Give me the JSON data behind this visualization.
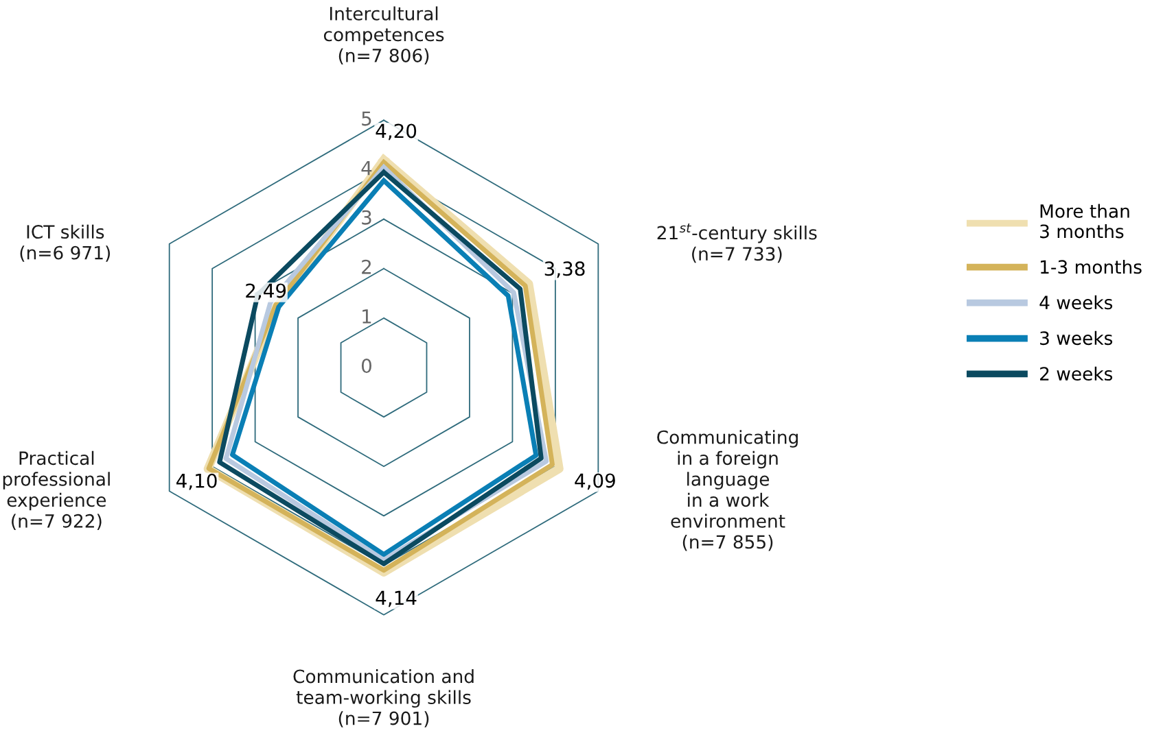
{
  "chart_data": {
    "type": "radar",
    "categories": [
      "Intercultural\ncompetences\n(n=7 806)",
      "21$^{st}$-century skills\n(n=7 733)",
      "Communicating\nin a foreign\nlanguage\nin a work\nenvironment\n(n=7 855)",
      "Communication and\nteam-working skills\n(n=7 901)",
      "Practical\nprofessional\nexperience\n(n=7 922)",
      "ICT skills\n(n=6 971)"
    ],
    "series": [
      {
        "name": "More than\n3 months",
        "color": "#efdfb0",
        "values": [
          4.2,
          3.38,
          4.09,
          4.14,
          4.1,
          2.49
        ],
        "value_labels": [
          "4,20",
          "3,38",
          "4,09",
          "4,14",
          "4,10",
          "2,49"
        ]
      },
      {
        "name": "1-3 months",
        "color": "#d4b35a",
        "values": [
          4.15,
          3.3,
          3.93,
          4.1,
          4.08,
          2.52
        ]
      },
      {
        "name": "4 weeks",
        "color": "#b8c9e0",
        "values": [
          4.05,
          3.03,
          3.79,
          3.89,
          3.68,
          2.64
        ]
      },
      {
        "name": "3 weeks",
        "color": "#0a7fb5",
        "values": [
          3.78,
          2.9,
          3.55,
          3.78,
          3.53,
          2.45
        ]
      },
      {
        "name": "2 weeks",
        "color": "#0b4a60",
        "values": [
          3.95,
          3.18,
          3.67,
          3.97,
          3.83,
          2.94
        ]
      }
    ],
    "ylim": [
      0,
      5
    ],
    "yticks": [
      0,
      1,
      2,
      3,
      4,
      5
    ],
    "grid": true,
    "legend": "right"
  }
}
